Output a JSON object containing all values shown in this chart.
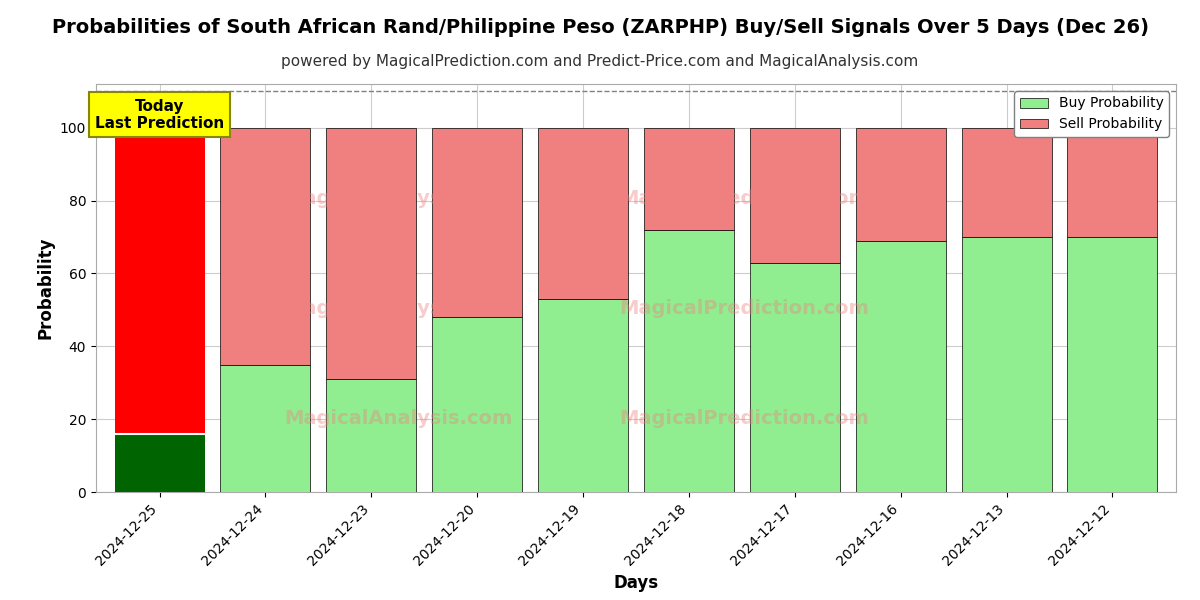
{
  "title": "Probabilities of South African Rand/Philippine Peso (ZARPHP) Buy/Sell Signals Over 5 Days (Dec 26)",
  "subtitle": "powered by MagicalPrediction.com and Predict-Price.com and MagicalAnalysis.com",
  "xlabel": "Days",
  "ylabel": "Probability",
  "categories": [
    "2024-12-25",
    "2024-12-24",
    "2024-12-23",
    "2024-12-20",
    "2024-12-19",
    "2024-12-18",
    "2024-12-17",
    "2024-12-16",
    "2024-12-13",
    "2024-12-12"
  ],
  "buy_values": [
    16,
    35,
    31,
    48,
    53,
    72,
    63,
    69,
    70,
    70
  ],
  "sell_values": [
    84,
    65,
    69,
    52,
    47,
    28,
    37,
    31,
    30,
    30
  ],
  "buy_color_today": "#006400",
  "sell_color_today": "#ff0000",
  "buy_color_normal": "#90EE90",
  "sell_color_normal": "#f08080",
  "today_annotation_text": "Today\nLast Prediction",
  "today_annotation_bg": "#ffff00",
  "legend_buy_label": "Buy Probability",
  "legend_sell_label": "Sell Probability",
  "ylim": [
    0,
    112
  ],
  "yticks": [
    0,
    20,
    40,
    60,
    80,
    100
  ],
  "dashed_line_y": 110,
  "background_color": "#ffffff",
  "grid_color": "#cccccc",
  "title_fontsize": 14,
  "subtitle_fontsize": 11,
  "bar_width": 0.85
}
